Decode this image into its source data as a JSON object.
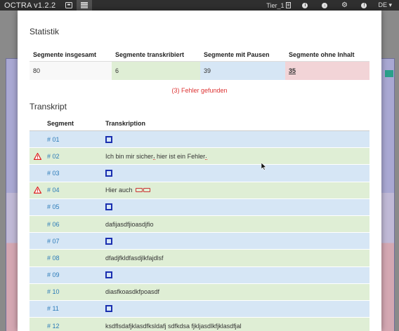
{
  "navbar": {
    "brand": "OCTRA v1.2.2",
    "tier": "Tier_1",
    "lang": "DE ▾"
  },
  "statistics": {
    "heading": "Statistik",
    "headers": [
      "Segmente insgesamt",
      "Segmente transkribiert",
      "Segmente mit Pausen",
      "Segmente ohne Inhalt"
    ],
    "values": [
      "80",
      "6",
      "39",
      "35"
    ],
    "errors_found": "(3) Fehler gefunden"
  },
  "transcript": {
    "heading": "Transkript",
    "col_segment": "Segment",
    "col_transcription": "Transkription",
    "rows": [
      {
        "seg": "# 01",
        "text": "",
        "warn": false,
        "empty": true
      },
      {
        "seg": "# 02",
        "text": "",
        "warn": true,
        "empty": false
      },
      {
        "seg": "# 03",
        "text": "",
        "warn": false,
        "empty": true
      },
      {
        "seg": "# 04",
        "text": "Hier auch",
        "warn": true,
        "empty": false
      },
      {
        "seg": "# 05",
        "text": "",
        "warn": false,
        "empty": true
      },
      {
        "seg": "# 06",
        "text": "dafijasdfjioasdjfio",
        "warn": false,
        "empty": false
      },
      {
        "seg": "# 07",
        "text": "",
        "warn": false,
        "empty": true
      },
      {
        "seg": "# 08",
        "text": "dfadjfkldfasdjlkfajdlsf",
        "warn": false,
        "empty": false
      },
      {
        "seg": "# 09",
        "text": "",
        "warn": false,
        "empty": true
      },
      {
        "seg": "# 10",
        "text": "diasfkoasdkfpoasdf",
        "warn": false,
        "empty": false
      },
      {
        "seg": "# 11",
        "text": "",
        "warn": false,
        "empty": true
      },
      {
        "seg": "# 12",
        "text": "ksdflsdafjklasdfksldafj sdfkdsa fjkljasdlkfjklasdfjal",
        "warn": false,
        "empty": false
      }
    ],
    "row2_parts": [
      "Ich bin mir sicher",
      ",",
      " hier ist ein Fehler",
      "."
    ]
  },
  "colors": {
    "error": "#dd3333",
    "link": "#2a7ab8",
    "row_blue": "#d6e6f5",
    "row_green": "#dfeed5",
    "row_red": "#f2d4d7"
  }
}
